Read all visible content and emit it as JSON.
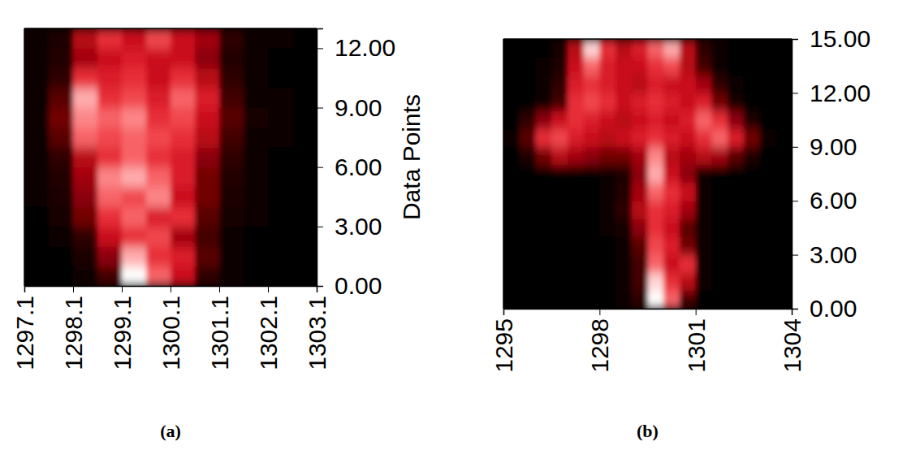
{
  "chart_data": [
    {
      "type": "heatmap",
      "title": "(a)",
      "ylabel": "Data Points",
      "x": [
        1297.35,
        1297.85,
        1298.35,
        1298.85,
        1299.35,
        1299.85,
        1300.35,
        1300.85,
        1301.35,
        1301.85,
        1302.35,
        1302.85
      ],
      "y": [
        0.5,
        1.5,
        2.5,
        3.5,
        4.5,
        5.5,
        6.5,
        7.5,
        8.5,
        9.5,
        10.5,
        11.5,
        12.5
      ],
      "cells": [
        [
          0.02,
          0.03,
          0.05,
          0.2,
          0.9,
          0.7,
          0.5,
          0.15,
          0.05,
          0.03,
          0.02,
          0.02
        ],
        [
          0.02,
          0.03,
          0.1,
          0.35,
          0.8,
          0.6,
          0.55,
          0.25,
          0.05,
          0.03,
          0.02,
          0.02
        ],
        [
          0.03,
          0.05,
          0.15,
          0.5,
          0.6,
          0.65,
          0.4,
          0.2,
          0.06,
          0.03,
          0.02,
          0.02
        ],
        [
          0.03,
          0.08,
          0.3,
          0.6,
          0.7,
          0.55,
          0.6,
          0.25,
          0.08,
          0.04,
          0.03,
          0.02
        ],
        [
          0.04,
          0.1,
          0.35,
          0.7,
          0.65,
          0.75,
          0.5,
          0.3,
          0.1,
          0.05,
          0.03,
          0.02
        ],
        [
          0.04,
          0.12,
          0.4,
          0.75,
          0.8,
          0.7,
          0.55,
          0.3,
          0.12,
          0.05,
          0.03,
          0.02
        ],
        [
          0.05,
          0.15,
          0.45,
          0.6,
          0.7,
          0.6,
          0.55,
          0.35,
          0.15,
          0.06,
          0.03,
          0.02
        ],
        [
          0.06,
          0.25,
          0.7,
          0.65,
          0.7,
          0.65,
          0.6,
          0.45,
          0.2,
          0.07,
          0.04,
          0.03
        ],
        [
          0.05,
          0.3,
          0.75,
          0.7,
          0.75,
          0.6,
          0.65,
          0.5,
          0.25,
          0.08,
          0.04,
          0.03
        ],
        [
          0.05,
          0.25,
          0.8,
          0.6,
          0.65,
          0.55,
          0.7,
          0.55,
          0.2,
          0.07,
          0.04,
          0.03
        ],
        [
          0.04,
          0.15,
          0.6,
          0.55,
          0.6,
          0.5,
          0.6,
          0.45,
          0.15,
          0.06,
          0.03,
          0.02
        ],
        [
          0.04,
          0.12,
          0.4,
          0.5,
          0.55,
          0.5,
          0.5,
          0.35,
          0.12,
          0.05,
          0.03,
          0.02
        ],
        [
          0.05,
          0.1,
          0.45,
          0.6,
          0.5,
          0.65,
          0.5,
          0.4,
          0.15,
          0.06,
          0.04,
          0.03
        ]
      ],
      "xlim": [
        1297.1,
        1303.1
      ],
      "xticks": [
        1297.1,
        1298.1,
        1299.1,
        1300.1,
        1301.1,
        1302.1,
        1303.1
      ],
      "ylim": [
        0,
        13
      ],
      "yticks": [
        {
          "value": 0,
          "label": "0.00"
        },
        {
          "value": 3,
          "label": "3.00"
        },
        {
          "value": 6,
          "label": "6.00"
        },
        {
          "value": 9,
          "label": "9.00"
        },
        {
          "value": 12,
          "label": "12.00"
        }
      ]
    },
    {
      "type": "heatmap",
      "title": "(b)",
      "x": [
        1295.25,
        1295.75,
        1296.25,
        1296.75,
        1297.25,
        1297.75,
        1298.25,
        1298.75,
        1299.25,
        1299.75,
        1300.25,
        1300.75,
        1301.25,
        1301.75,
        1302.25,
        1302.75,
        1303.25,
        1303.75
      ],
      "y": [
        0.5,
        1.5,
        2.5,
        3.5,
        4.5,
        5.5,
        6.5,
        7.5,
        8.5,
        9.5,
        10.5,
        11.5,
        12.5,
        13.5,
        14.5
      ],
      "cells": [
        [
          0.02,
          0.02,
          0.02,
          0.02,
          0.02,
          0.02,
          0.03,
          0.05,
          0.15,
          0.9,
          0.7,
          0.2,
          0.03,
          0.02,
          0.02,
          0.02,
          0.02,
          0.02
        ],
        [
          0.02,
          0.02,
          0.02,
          0.02,
          0.02,
          0.02,
          0.03,
          0.05,
          0.2,
          0.85,
          0.6,
          0.45,
          0.04,
          0.02,
          0.02,
          0.02,
          0.02,
          0.02
        ],
        [
          0.02,
          0.02,
          0.02,
          0.02,
          0.02,
          0.02,
          0.03,
          0.05,
          0.2,
          0.7,
          0.5,
          0.6,
          0.04,
          0.02,
          0.02,
          0.02,
          0.02,
          0.02
        ],
        [
          0.02,
          0.02,
          0.02,
          0.02,
          0.02,
          0.02,
          0.03,
          0.05,
          0.25,
          0.65,
          0.55,
          0.3,
          0.04,
          0.02,
          0.02,
          0.02,
          0.02,
          0.02
        ],
        [
          0.02,
          0.02,
          0.02,
          0.02,
          0.02,
          0.03,
          0.04,
          0.08,
          0.35,
          0.6,
          0.5,
          0.25,
          0.04,
          0.02,
          0.02,
          0.02,
          0.02,
          0.02
        ],
        [
          0.02,
          0.02,
          0.02,
          0.02,
          0.02,
          0.03,
          0.05,
          0.15,
          0.45,
          0.6,
          0.55,
          0.4,
          0.05,
          0.02,
          0.02,
          0.02,
          0.02,
          0.02
        ],
        [
          0.02,
          0.02,
          0.02,
          0.02,
          0.02,
          0.03,
          0.05,
          0.12,
          0.4,
          0.7,
          0.6,
          0.5,
          0.05,
          0.02,
          0.02,
          0.02,
          0.02,
          0.02
        ],
        [
          0.02,
          0.02,
          0.02,
          0.02,
          0.02,
          0.03,
          0.05,
          0.1,
          0.35,
          0.8,
          0.5,
          0.35,
          0.05,
          0.02,
          0.02,
          0.02,
          0.02,
          0.02
        ],
        [
          0.03,
          0.1,
          0.3,
          0.45,
          0.4,
          0.35,
          0.3,
          0.3,
          0.4,
          0.75,
          0.45,
          0.4,
          0.45,
          0.4,
          0.25,
          0.1,
          0.03,
          0.02
        ],
        [
          0.04,
          0.25,
          0.6,
          0.65,
          0.55,
          0.5,
          0.45,
          0.5,
          0.55,
          0.6,
          0.55,
          0.5,
          0.6,
          0.7,
          0.55,
          0.3,
          0.05,
          0.02
        ],
        [
          0.03,
          0.15,
          0.35,
          0.5,
          0.6,
          0.55,
          0.5,
          0.45,
          0.5,
          0.55,
          0.5,
          0.55,
          0.7,
          0.6,
          0.35,
          0.1,
          0.03,
          0.02
        ],
        [
          0.02,
          0.03,
          0.06,
          0.2,
          0.6,
          0.65,
          0.6,
          0.5,
          0.55,
          0.6,
          0.55,
          0.5,
          0.55,
          0.3,
          0.08,
          0.03,
          0.02,
          0.02
        ],
        [
          0.02,
          0.02,
          0.05,
          0.15,
          0.55,
          0.6,
          0.55,
          0.5,
          0.45,
          0.55,
          0.5,
          0.5,
          0.4,
          0.15,
          0.04,
          0.02,
          0.02,
          0.02
        ],
        [
          0.02,
          0.02,
          0.04,
          0.1,
          0.5,
          0.7,
          0.55,
          0.5,
          0.5,
          0.6,
          0.65,
          0.45,
          0.2,
          0.05,
          0.03,
          0.02,
          0.02,
          0.02
        ],
        [
          0.02,
          0.02,
          0.03,
          0.08,
          0.45,
          0.85,
          0.6,
          0.45,
          0.55,
          0.7,
          0.8,
          0.45,
          0.15,
          0.04,
          0.02,
          0.02,
          0.02,
          0.02
        ]
      ],
      "xlim": [
        1295,
        1304
      ],
      "xticks": [
        1295,
        1298,
        1301,
        1304
      ],
      "ylim": [
        0,
        15
      ],
      "yticks": [
        {
          "value": 0,
          "label": "0.00"
        },
        {
          "value": 3,
          "label": "3.00"
        },
        {
          "value": 6,
          "label": "6.00"
        },
        {
          "value": 9,
          "label": "9.00"
        },
        {
          "value": 12,
          "label": "12.00"
        },
        {
          "value": 15,
          "label": "15.00"
        }
      ]
    }
  ]
}
